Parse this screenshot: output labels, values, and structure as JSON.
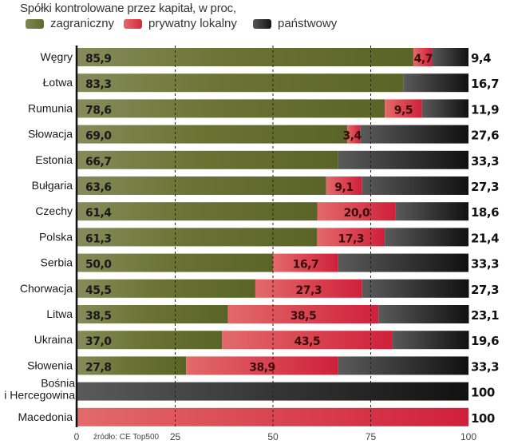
{
  "chart_data": {
    "type": "bar",
    "orientation": "horizontal",
    "stacked": true,
    "title": "Spółki kontrolowane przez kapitał,  w proc,",
    "source": "źródło: CE Top500",
    "categories": [
      "Węgry",
      "Łotwa",
      "Rumunia",
      "Słowacja",
      "Estonia",
      "Bułgaria",
      "Czechy",
      "Polska",
      "Serbia",
      "Chorwacja",
      "Litwa",
      "Ukraina",
      "Słowenia",
      "Bośnia\ni Hercegowina",
      "Macedonia"
    ],
    "series": [
      {
        "name": "zagraniczny",
        "color": "#5f6a2c",
        "values": [
          85.9,
          83.3,
          78.6,
          69.0,
          66.7,
          63.6,
          61.4,
          61.3,
          50.0,
          45.5,
          38.5,
          37.0,
          27.8,
          0,
          0
        ],
        "labels": [
          "85,9",
          "83,3",
          "78,6",
          "69,0",
          "66,7",
          "63,6",
          "61,4",
          "61,3",
          "50,0",
          "45,5",
          "38,5",
          "37,0",
          "27,8",
          "",
          ""
        ]
      },
      {
        "name": "prywatny lokalny",
        "color": "#d42b3a",
        "values": [
          4.7,
          0,
          9.5,
          3.4,
          0,
          9.1,
          20.0,
          17.3,
          16.7,
          27.3,
          38.5,
          43.5,
          38.9,
          0,
          100
        ],
        "labels": [
          "4,7",
          "",
          "9,5",
          "3,4",
          "",
          "9,1",
          "20,0",
          "17,3",
          "16,7",
          "27,3",
          "38,5",
          "43,5",
          "38,9",
          "",
          ""
        ]
      },
      {
        "name": "państwowy",
        "color": "#1e1e1e",
        "values": [
          9.4,
          16.7,
          11.9,
          27.6,
          33.3,
          27.3,
          18.6,
          21.4,
          33.3,
          27.3,
          23.1,
          19.6,
          33.3,
          100,
          0
        ],
        "labels": [
          "9,4",
          "16,7",
          "11,9",
          "27,6",
          "33,3",
          "27,3",
          "18,6",
          "21,4",
          "33,3",
          "27,3",
          "23,1",
          "19,6",
          "33,3",
          "100",
          ""
        ]
      }
    ],
    "right_labels": [
      "9,4",
      "16,7",
      "11,9",
      "27,6",
      "33,3",
      "27,3",
      "18,6",
      "21,4",
      "33,3",
      "27,3",
      "23,1",
      "19,6",
      "33,3",
      "100",
      "100"
    ],
    "xlim": [
      0,
      100
    ],
    "xticks": [
      0,
      25,
      50,
      75,
      100
    ],
    "xtick_labels": [
      "0",
      "25",
      "50",
      "75",
      "100"
    ],
    "gridlines": [
      25,
      50,
      75
    ],
    "grid_style": "dashed",
    "legend_position": "top-left"
  }
}
